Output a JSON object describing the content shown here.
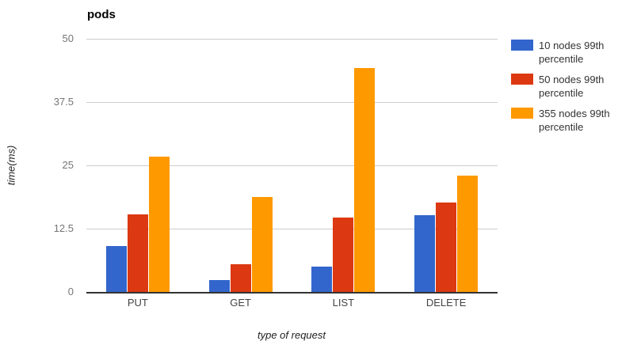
{
  "chart_data": {
    "type": "bar",
    "title": "pods",
    "xlabel": "type of request",
    "ylabel": "time(ms)",
    "categories": [
      "PUT",
      "GET",
      "LIST",
      "DELETE"
    ],
    "series": [
      {
        "name": "10 nodes 99th percentile",
        "color": "#3366CC",
        "values": [
          9.0,
          2.4,
          5.0,
          15.1
        ]
      },
      {
        "name": "50 nodes 99th percentile",
        "color": "#DC3912",
        "values": [
          15.3,
          5.4,
          14.7,
          17.6
        ]
      },
      {
        "name": "355 nodes 99th percentile",
        "color": "#FF9900",
        "values": [
          26.7,
          18.8,
          44.2,
          23.0
        ]
      }
    ],
    "ylim": [
      0,
      50
    ],
    "yticks": [
      0,
      12.5,
      25,
      37.5,
      50
    ],
    "grid": true,
    "legend_position": "right"
  },
  "colors": {
    "background": "#FFFFFF",
    "gridline": "#CCCCCC",
    "baseline": "#333333",
    "tick_label": "#757575",
    "category_label": "#444444",
    "legend_text": "#333333",
    "title_text": "#000000",
    "axis_title_text": "#222222"
  }
}
